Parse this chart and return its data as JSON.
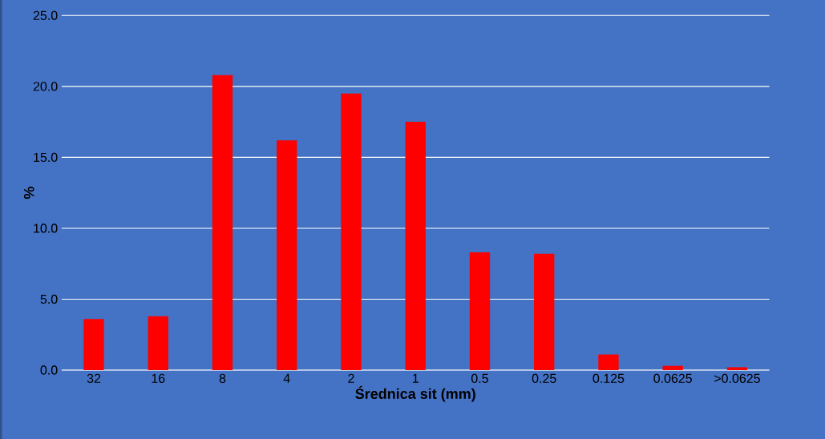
{
  "chart_data": {
    "type": "bar",
    "xlabel": "Średnica sit (mm)",
    "ylabel": "%",
    "categories": [
      "32",
      "16",
      "8",
      "4",
      "2",
      "1",
      "0.5",
      "0.25",
      "0.125",
      "0.0625",
      ">0.0625"
    ],
    "values": [
      3.6,
      3.8,
      20.8,
      16.2,
      19.5,
      17.5,
      8.3,
      8.2,
      1.1,
      0.3,
      0.2
    ],
    "color": "#ff0000",
    "ylim": [
      0,
      25
    ],
    "yticks": [
      {
        "value": 0,
        "label": "0.0"
      },
      {
        "value": 5,
        "label": "5.0"
      },
      {
        "value": 10,
        "label": "10.0"
      },
      {
        "value": 15,
        "label": "15.0"
      },
      {
        "value": 20,
        "label": "20.0"
      },
      {
        "value": 25,
        "label": "25.0"
      }
    ],
    "grid": "y"
  }
}
